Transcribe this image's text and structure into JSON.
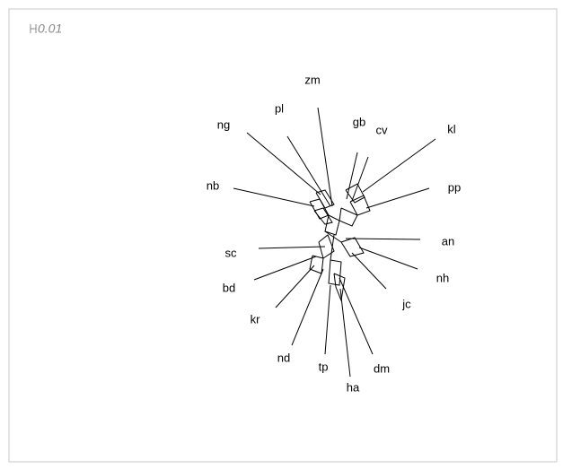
{
  "scale_label": "0.01",
  "taxa": [
    "zm",
    "pl",
    "ng",
    "gb",
    "cv",
    "kl",
    "nb",
    "pp",
    "an",
    "sc",
    "nh",
    "bd",
    "jc",
    "kr",
    "nd",
    "tp",
    "dm",
    "ha"
  ]
}
